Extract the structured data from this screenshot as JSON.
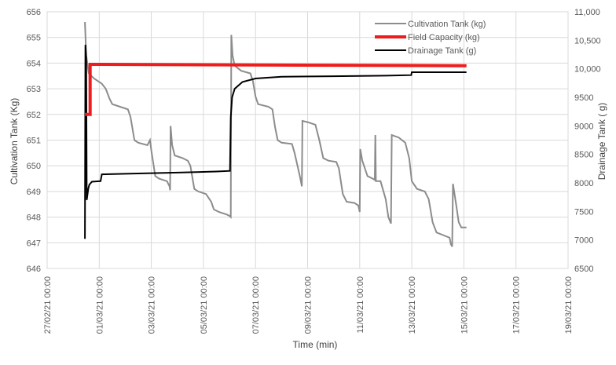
{
  "chart_data": {
    "type": "line",
    "title": "",
    "xlabel": "Time (min)",
    "ylabel_left": "Cultivation Tank (Kg)",
    "ylabel_right": "Drainage Tank ( g)",
    "x_ticks": [
      "27/02/21 00:00",
      "01/03/21 00:00",
      "03/03/21 00:00",
      "05/03/21 00:00",
      "07/03/21 00:00",
      "09/03/21 00:00",
      "11/03/21 00:00",
      "13/03/21 00:00",
      "15/03/21 00:00",
      "17/03/21 00:00",
      "19/03/21 00:00"
    ],
    "x_range_days": [
      0,
      20
    ],
    "y_left_ticks": [
      "646",
      "647",
      "648",
      "649",
      "650",
      "651",
      "652",
      "653",
      "654",
      "655",
      "656"
    ],
    "y_left_range": [
      646,
      656
    ],
    "y_right_ticks": [
      "6500",
      "7000",
      "7500",
      "8000",
      "8500",
      "9000",
      "9500",
      "10000",
      "10500",
      "11000"
    ],
    "y_right_labels": [
      "6500",
      "7000",
      "7500",
      "8000",
      "8500",
      "9000",
      "9500",
      "10,000",
      "10,500",
      "11,000"
    ],
    "y_right_range": [
      6500,
      11000
    ],
    "grid": true,
    "legend_position": "top-right",
    "series": [
      {
        "name": "Cultivation Tank (kg)",
        "axis": "left",
        "color": "#8c8c8c",
        "points": [
          [
            1.45,
            655.6
          ],
          [
            1.5,
            654.3
          ],
          [
            1.6,
            653.6
          ],
          [
            1.8,
            653.4
          ],
          [
            2.1,
            653.2
          ],
          [
            2.25,
            653.0
          ],
          [
            2.4,
            652.6
          ],
          [
            2.5,
            652.4
          ],
          [
            2.8,
            652.3
          ],
          [
            3.1,
            652.2
          ],
          [
            3.2,
            651.9
          ],
          [
            3.35,
            651.0
          ],
          [
            3.5,
            650.9
          ],
          [
            3.85,
            650.8
          ],
          [
            3.95,
            651.0
          ],
          [
            4.0,
            650.6
          ],
          [
            4.15,
            649.6
          ],
          [
            4.3,
            649.5
          ],
          [
            4.6,
            649.4
          ],
          [
            4.7,
            649.2
          ],
          [
            4.72,
            649.05
          ],
          [
            4.74,
            651.55
          ],
          [
            4.8,
            650.8
          ],
          [
            4.9,
            650.4
          ],
          [
            5.2,
            650.3
          ],
          [
            5.4,
            650.2
          ],
          [
            5.5,
            650.0
          ],
          [
            5.65,
            649.1
          ],
          [
            5.8,
            649.0
          ],
          [
            6.1,
            648.9
          ],
          [
            6.3,
            648.6
          ],
          [
            6.4,
            648.3
          ],
          [
            6.6,
            648.2
          ],
          [
            6.9,
            648.1
          ],
          [
            7.0,
            648.05
          ],
          [
            7.05,
            648.0
          ],
          [
            7.07,
            655.1
          ],
          [
            7.12,
            654.3
          ],
          [
            7.2,
            653.9
          ],
          [
            7.45,
            653.7
          ],
          [
            7.8,
            653.6
          ],
          [
            7.9,
            653.3
          ],
          [
            8.0,
            652.7
          ],
          [
            8.1,
            652.4
          ],
          [
            8.5,
            652.3
          ],
          [
            8.65,
            652.2
          ],
          [
            8.75,
            651.5
          ],
          [
            8.85,
            651.0
          ],
          [
            9.0,
            650.9
          ],
          [
            9.4,
            650.85
          ],
          [
            9.5,
            650.5
          ],
          [
            9.7,
            649.6
          ],
          [
            9.78,
            649.2
          ],
          [
            9.8,
            651.75
          ],
          [
            10.0,
            651.7
          ],
          [
            10.3,
            651.6
          ],
          [
            10.45,
            651.0
          ],
          [
            10.6,
            650.3
          ],
          [
            10.8,
            650.2
          ],
          [
            11.1,
            650.15
          ],
          [
            11.2,
            649.9
          ],
          [
            11.35,
            648.9
          ],
          [
            11.5,
            648.6
          ],
          [
            11.8,
            648.55
          ],
          [
            11.95,
            648.45
          ],
          [
            12.0,
            648.2
          ],
          [
            12.02,
            650.65
          ],
          [
            12.1,
            650.2
          ],
          [
            12.3,
            649.6
          ],
          [
            12.5,
            649.5
          ],
          [
            12.58,
            649.45
          ],
          [
            12.6,
            651.2
          ],
          [
            12.62,
            649.4
          ],
          [
            12.8,
            649.4
          ],
          [
            13.0,
            648.7
          ],
          [
            13.1,
            648.0
          ],
          [
            13.2,
            647.75
          ],
          [
            13.23,
            651.2
          ],
          [
            13.5,
            651.1
          ],
          [
            13.75,
            650.9
          ],
          [
            13.9,
            650.3
          ],
          [
            14.0,
            649.4
          ],
          [
            14.2,
            649.1
          ],
          [
            14.5,
            649.0
          ],
          [
            14.65,
            648.7
          ],
          [
            14.8,
            647.8
          ],
          [
            14.95,
            647.4
          ],
          [
            15.2,
            647.3
          ],
          [
            15.45,
            647.2
          ],
          [
            15.5,
            646.95
          ],
          [
            15.55,
            646.85
          ],
          [
            15.58,
            649.3
          ],
          [
            15.7,
            648.5
          ],
          [
            15.8,
            647.8
          ],
          [
            15.9,
            647.6
          ],
          [
            16.1,
            647.6
          ]
        ]
      },
      {
        "name": "Field Capacity (kg)",
        "axis": "left",
        "color": "#ee1c1c",
        "points": [
          [
            1.45,
            652.0
          ],
          [
            1.65,
            652.0
          ],
          [
            1.65,
            653.95
          ],
          [
            16.1,
            653.9
          ]
        ]
      },
      {
        "name": "Drainage Tank (g)",
        "axis": "right",
        "color": "#000000",
        "points": [
          [
            1.45,
            7020
          ],
          [
            1.47,
            10420
          ],
          [
            1.5,
            10200
          ],
          [
            1.52,
            7700
          ],
          [
            1.58,
            7900
          ],
          [
            1.62,
            7970
          ],
          [
            1.72,
            8020
          ],
          [
            2.05,
            8030
          ],
          [
            2.1,
            8150
          ],
          [
            3.0,
            8160
          ],
          [
            5.0,
            8180
          ],
          [
            6.5,
            8200
          ],
          [
            7.02,
            8210
          ],
          [
            7.05,
            9150
          ],
          [
            7.1,
            9500
          ],
          [
            7.2,
            9650
          ],
          [
            7.5,
            9770
          ],
          [
            8.0,
            9830
          ],
          [
            9.0,
            9860
          ],
          [
            11.0,
            9870
          ],
          [
            13.0,
            9880
          ],
          [
            13.98,
            9890
          ],
          [
            14.0,
            9940
          ],
          [
            16.1,
            9940
          ]
        ]
      }
    ]
  }
}
